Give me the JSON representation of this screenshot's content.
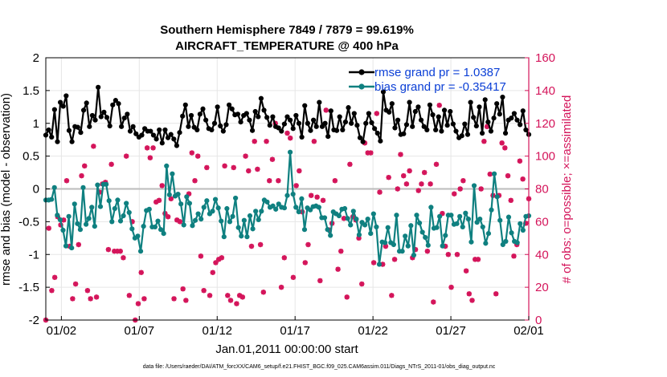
{
  "chart_data": {
    "type": "line",
    "title": "Southern Hemisphere 7849 / 7879 = 99.619%",
    "subtitle": "AIRCRAFT_TEMPERATURE @ 400 hPa",
    "xlabel": "Jan.01,2011 00:00:00 start",
    "ylabel": "rmse and bias (model - observation)",
    "ylabel_right": "# of obs: o=possible; ×=assimilated",
    "footnote": "data file: /Users/raeder/DAI/ATM_forcXX/CAM6_setup/f.e21.FHIST_BGC.f09_025.CAM6assim.011/Diags_NTrS_2011-01/obs_diag_output.nc",
    "x_ticks": [
      "01/02",
      "01/07",
      "01/12",
      "01/17",
      "01/22",
      "01/27",
      "02/01"
    ],
    "x_tick_days": [
      1,
      6,
      11,
      16,
      21,
      26,
      31
    ],
    "xlim": [
      0,
      31
    ],
    "y_ticks": [
      "-2",
      "-1.5",
      "-1",
      "-0.5",
      "0",
      "0.5",
      "1",
      "1.5",
      "2"
    ],
    "ylim": [
      -2,
      2
    ],
    "y2_ticks": [
      "0",
      "20",
      "40",
      "60",
      "80",
      "100",
      "120",
      "140",
      "160"
    ],
    "y2lim": [
      0,
      160
    ],
    "grid": true,
    "legend_position": "top-right",
    "colors": {
      "rmse": "#000000",
      "bias": "#0f8080",
      "obs": "#d4145a",
      "zero": "#bbbbbb",
      "legend_text": "#0b3fd6",
      "right_axis": "#d4145a"
    },
    "series": [
      {
        "name": "rmse grand pr = 1.0387",
        "values": [
          0.82,
          0.9,
          0.79,
          1.21,
          0.72,
          1.32,
          1.26,
          1.42,
          0.89,
          0.72,
          0.95,
          0.94,
          0.86,
          1.2,
          1.31,
          0.95,
          1.12,
          1.05,
          1.55,
          1.1,
          1.17,
          1.09,
          0.96,
          1.28,
          1.35,
          1.3,
          0.95,
          1.08,
          1.14,
          0.88,
          0.95,
          0.84,
          0.79,
          0.82,
          0.92,
          0.88,
          0.88,
          0.82,
          0.76,
          0.9,
          0.7,
          0.9,
          0.78,
          0.83,
          0.76,
          0.66,
          0.86,
          1.11,
          1.28,
          0.95,
          1.12,
          0.94,
          0.9,
          1.14,
          1.22,
          1.05,
          0.92,
          0.9,
          1.0,
          1.25,
          0.96,
          0.88,
          0.98,
          1.28,
          1.22,
          1.13,
          1.14,
          1.02,
          1.12,
          1.15,
          1.05,
          0.89,
          1.18,
          1.1,
          1.38,
          1.2,
          1.09,
          0.97,
          1.1,
          0.95,
          0.93,
          0.88,
          0.99,
          1.1,
          1.05,
          0.92,
          1.12,
          1.0,
          0.79,
          1.27,
          1.0,
          0.89,
          1.05,
          0.95,
          1.32,
          0.95,
          1.0,
          0.8,
          1.19,
          0.9,
          0.89,
          1.1,
          0.9,
          1.02,
          1.24,
          1.0,
          1.15,
          0.97,
          0.78,
          0.72,
          1.0,
          1.15,
          1.01,
          0.92,
          0.85,
          0.73,
          1.48,
          1.2,
          1.17,
          1.3,
          0.93,
          1.05,
          0.83,
          0.84,
          0.98,
          1.32,
          0.95,
          1.18,
          1.25,
          1.05,
          0.95,
          0.9,
          1.28,
          1.13,
          0.9,
          1.1,
          0.88,
          1.2,
          0.97,
          1.18,
          0.99,
          0.88,
          0.78,
          0.81,
          0.99,
          0.83,
          1.32,
          1.09,
          0.96,
          1.25,
          0.85,
          1.36,
          1.02,
          0.88,
          1.08,
          1.3,
          1.14,
          1.4,
          0.85,
          1.05,
          1.08,
          1.15,
          1.05,
          0.98,
          1.19,
          0.9,
          0.83
        ]
      },
      {
        "name": "bias grand pr = -0.35417",
        "values": [
          -0.17,
          -0.17,
          -0.16,
          0.02,
          -0.4,
          -0.47,
          -0.63,
          -0.87,
          -0.42,
          -0.9,
          -0.23,
          -0.53,
          -0.62,
          0.02,
          -0.54,
          -0.45,
          -0.28,
          -0.57,
          0.06,
          -0.27,
          0.07,
          0.07,
          -0.18,
          -0.5,
          -0.3,
          -0.17,
          -0.49,
          -0.41,
          -0.22,
          -0.36,
          -0.61,
          -0.75,
          -0.72,
          -0.95,
          -0.57,
          -0.33,
          -0.31,
          -0.58,
          -0.58,
          -0.49,
          -0.62,
          -0.68,
          0.35,
          -0.09,
          0.23,
          -0.11,
          -0.08,
          -0.23,
          -0.55,
          -0.12,
          -0.22,
          -0.56,
          -0.48,
          -0.38,
          -0.46,
          -0.28,
          -0.18,
          -0.38,
          -0.34,
          -0.16,
          -0.29,
          -0.49,
          -0.73,
          -0.3,
          -0.5,
          -0.42,
          -0.14,
          -0.59,
          -0.72,
          -0.48,
          -0.73,
          -0.41,
          -0.61,
          -0.34,
          -0.47,
          -0.34,
          -0.17,
          -0.2,
          -0.28,
          -0.26,
          -0.31,
          -0.23,
          -0.28,
          -0.29,
          -0.1,
          0.56,
          -0.08,
          -0.28,
          -0.35,
          -0.15,
          -0.62,
          -0.29,
          -0.32,
          -0.27,
          -0.26,
          -0.28,
          -0.44,
          -0.44,
          -0.62,
          -0.71,
          -0.35,
          -0.38,
          -0.41,
          -0.31,
          -0.3,
          -0.45,
          -0.55,
          -0.34,
          -0.46,
          -0.7,
          -0.51,
          -0.55,
          -0.46,
          -0.68,
          -0.38,
          -0.58,
          -1.15,
          -0.81,
          -0.82,
          -0.59,
          -0.82,
          -0.85,
          -0.4,
          -0.95,
          -0.95,
          -0.72,
          -0.87,
          -0.56,
          -1.01,
          -0.4,
          -0.52,
          -0.66,
          -0.74,
          -0.86,
          -0.28,
          -0.6,
          -0.59,
          -0.42,
          -0.87,
          -0.71,
          -0.4,
          -0.4,
          -0.54,
          -0.53,
          -0.42,
          -0.58,
          -0.37,
          -0.46,
          -0.81,
          0.05,
          -0.51,
          -0.46,
          -0.58,
          -0.83,
          -0.68,
          -0.32,
          0.23,
          -0.12,
          -0.48,
          -0.85,
          -0.8,
          -0.43,
          -0.67,
          -0.8,
          -0.82,
          -0.53,
          -0.63,
          -0.42,
          -0.41
        ]
      },
      {
        "name": "# of obs (assimilated)",
        "axis": "right",
        "values": [
          0,
          56,
          18,
          26,
          63,
          58,
          61,
          85,
          45,
          13,
          22,
          46,
          88,
          94,
          18,
          13,
          106,
          14,
          78,
          83,
          84,
          43,
          95,
          42,
          42,
          42,
          38,
          100,
          15,
          60,
          0,
          10,
          29,
          13,
          105,
          99,
          105,
          72,
          73,
          82,
          65,
          63,
          74,
          13,
          61,
          60,
          19,
          12,
          77,
          102,
          85,
          100,
          39,
          18,
          93,
          15,
          29,
          35,
          37,
          38,
          94,
          15,
          12,
          93,
          10,
          15,
          14,
          100,
          91,
          45,
          109,
          92,
          46,
          17,
          109,
          85,
          98,
          120,
          85,
          20,
          38,
          114,
          111,
          26,
          82,
          91,
          66,
          35,
          46,
          76,
          109,
          75,
          24,
          73,
          128,
          55,
          59,
          85,
          31,
          42,
          62,
          14,
          95,
          63,
          61,
          50,
          22,
          108,
          102,
          102,
          35,
          126,
          78,
          34,
          45,
          87,
          15,
          37,
          80,
          101,
          88,
          83,
          91,
          38,
          43,
          79,
          83,
          90,
          42,
          83,
          11,
          95,
          131,
          65,
          45,
          40,
          20,
          77,
          40,
          80,
          85,
          30,
          16,
          12,
          37,
          37,
          80,
          109,
          118,
          89,
          76,
          16,
          76,
          108,
          105,
          88,
          73,
          39,
          46,
          97,
          86,
          59,
          74
        ]
      },
      {
        "name": "# of obs (possible)",
        "axis": "right",
        "values": [
          0,
          56,
          18,
          26,
          63,
          58,
          61,
          85,
          45,
          13,
          22,
          46,
          88,
          94,
          18,
          13,
          106,
          14,
          78,
          83,
          84,
          43,
          95,
          42,
          42,
          42,
          38,
          100,
          15,
          60,
          0,
          10,
          29,
          13,
          105,
          99,
          105,
          72,
          73,
          82,
          65,
          63,
          74,
          13,
          61,
          60,
          19,
          12,
          77,
          102,
          85,
          100,
          39,
          18,
          93,
          15,
          29,
          35,
          37,
          38,
          94,
          15,
          12,
          93,
          10,
          15,
          14,
          100,
          91,
          45,
          109,
          92,
          46,
          17,
          109,
          85,
          98,
          120,
          85,
          20,
          38,
          114,
          111,
          26,
          82,
          91,
          66,
          35,
          46,
          76,
          109,
          75,
          24,
          73,
          128,
          55,
          59,
          85,
          31,
          42,
          62,
          14,
          95,
          63,
          61,
          50,
          22,
          108,
          102,
          102,
          35,
          126,
          78,
          34,
          45,
          87,
          15,
          37,
          80,
          101,
          88,
          83,
          91,
          38,
          43,
          79,
          83,
          90,
          42,
          83,
          11,
          95,
          131,
          65,
          45,
          40,
          20,
          77,
          40,
          80,
          85,
          30,
          16,
          12,
          37,
          37,
          80,
          109,
          118,
          89,
          76,
          16,
          76,
          108,
          105,
          88,
          73,
          39,
          46,
          97,
          86,
          59,
          74
        ]
      }
    ]
  }
}
